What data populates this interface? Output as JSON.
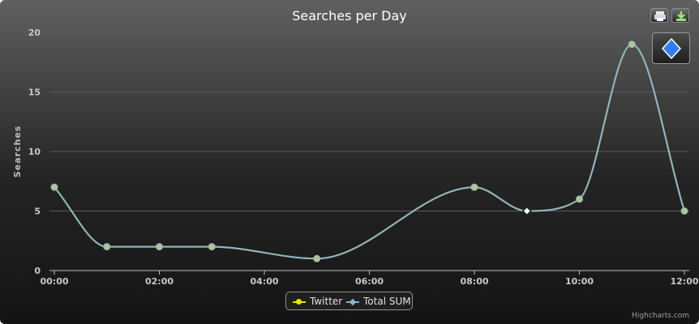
{
  "chart_data": {
    "type": "line",
    "title": "Searches per Day",
    "ylabel": "Searches",
    "ylim": [
      0,
      20
    ],
    "yticks": [
      0,
      5,
      10,
      15,
      20
    ],
    "xlim": [
      "00:00",
      "12:00"
    ],
    "xticks": [
      "00:00",
      "02:00",
      "04:00",
      "06:00",
      "08:00",
      "10:00",
      "12:00"
    ],
    "x": [
      "00:00",
      "01:00",
      "02:00",
      "03:00",
      "05:00",
      "08:00",
      "09:00",
      "10:00",
      "11:00",
      "12:00"
    ],
    "series": [
      {
        "name": "Twitter",
        "color": "#e6e600",
        "marker": "circle",
        "values": [
          7,
          2,
          2,
          2,
          1,
          7,
          5,
          6,
          19,
          5
        ]
      },
      {
        "name": "Total SUM",
        "color": "#8cb4cc",
        "marker": "diamond",
        "values": [
          7,
          2,
          2,
          2,
          1,
          7,
          5,
          6,
          19,
          5
        ]
      }
    ],
    "highlighted_point": {
      "x": "09:00",
      "y": 5
    },
    "grid": true,
    "legend": "bottom-center"
  },
  "credits": "Highcharts.com",
  "toolbar": {
    "print_icon": "printer-icon",
    "export_icon": "download-icon"
  },
  "colors": {
    "twitter": "#e6e600",
    "total_sum": "#8cb4cc",
    "diamond": "#2f7df5"
  }
}
